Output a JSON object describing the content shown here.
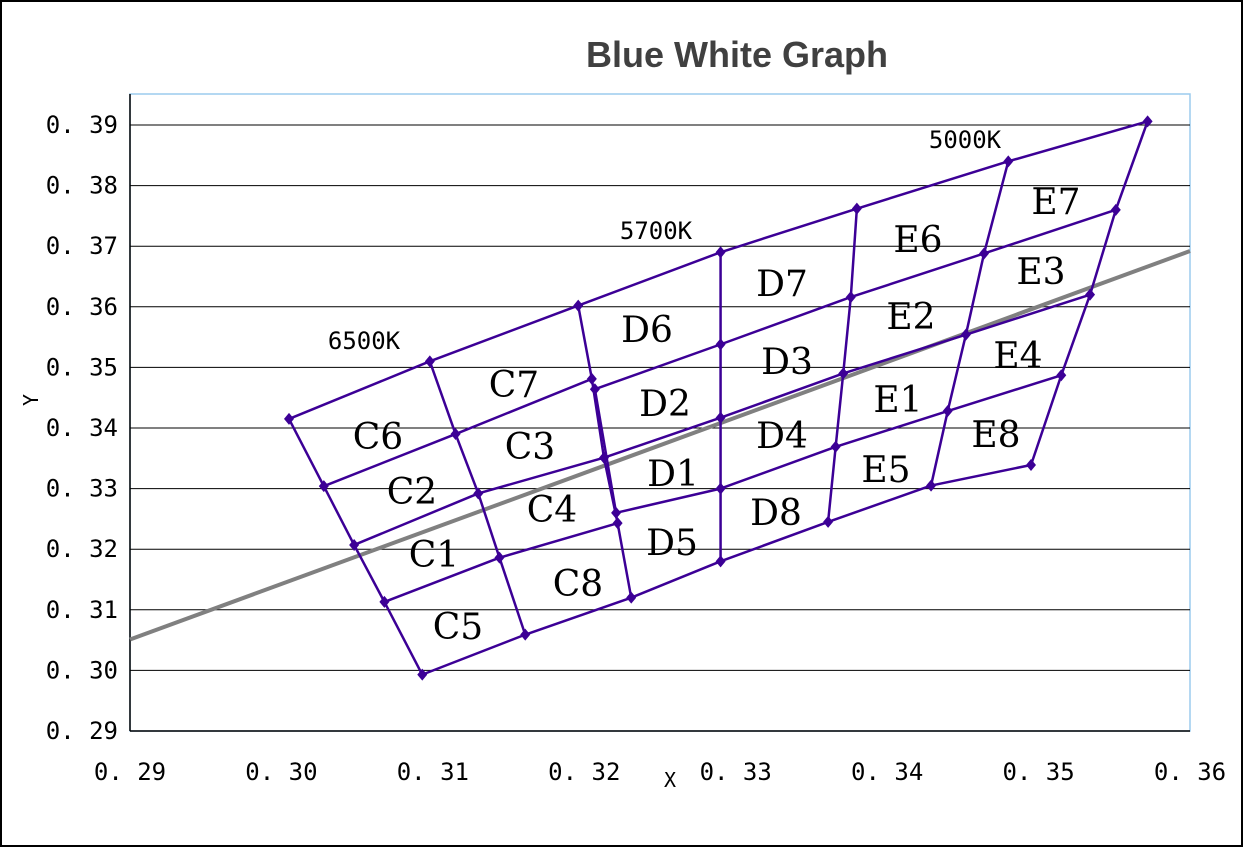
{
  "chart_data": {
    "type": "scatter",
    "title": "Blue White Graph",
    "xlabel": "X",
    "ylabel": "Y",
    "xlim": [
      0.29,
      0.36
    ],
    "ylim": [
      0.29,
      0.39
    ],
    "x_ticks": [
      "0. 29",
      "0. 30",
      "0. 31",
      "0. 32",
      "0. 33",
      "0. 34",
      "0. 35",
      "0. 36"
    ],
    "y_ticks": [
      "0. 29",
      "0. 30",
      "0. 31",
      "0. 32",
      "0. 33",
      "0. 34",
      "0. 35",
      "0. 36",
      "0. 37",
      "0. 38",
      "0. 39"
    ],
    "grid": "horizontal",
    "legend": "none",
    "colors": {
      "grid_line": "#3c0096",
      "reference_line": "#808080",
      "axis_line": "#000000",
      "plot_border": "#9ccbee"
    },
    "grid_points": {
      "c_left": [
        [
          0.3005,
          0.3415
        ],
        [
          0.3028,
          0.3304
        ],
        [
          0.3048,
          0.3207
        ],
        [
          0.3068,
          0.3113
        ],
        [
          0.3093,
          0.2993
        ]
      ],
      "c_mid": [
        [
          0.3098,
          0.351
        ],
        [
          0.3115,
          0.339
        ],
        [
          0.313,
          0.3292
        ],
        [
          0.3144,
          0.3186
        ],
        [
          0.3161,
          0.3059
        ]
      ],
      "c_right": [
        [
          0.3196,
          0.3602
        ],
        [
          0.3205,
          0.3481
        ],
        [
          0.3213,
          0.3351
        ],
        [
          0.3222,
          0.3243
        ],
        [
          0.3231,
          0.312
        ]
      ],
      "d_left": [
        [
          0.3207,
          0.3464
        ],
        [
          0.3221,
          0.326
        ]
      ],
      "d_mid": [
        [
          0.329,
          0.369
        ],
        [
          0.329,
          0.3538
        ],
        [
          0.329,
          0.3417
        ],
        [
          0.329,
          0.33
        ],
        [
          0.329,
          0.318
        ]
      ],
      "d_right": [
        [
          0.338,
          0.3762
        ],
        [
          0.3376,
          0.3616
        ],
        [
          0.3371,
          0.349
        ],
        [
          0.3366,
          0.3369
        ],
        [
          0.3361,
          0.3245
        ]
      ],
      "e_mid": [
        [
          0.348,
          0.384
        ],
        [
          0.3464,
          0.3688
        ],
        [
          0.3452,
          0.3554
        ],
        [
          0.344,
          0.3428
        ],
        [
          0.3429,
          0.3305
        ]
      ],
      "e_right": [
        [
          0.3572,
          0.3906
        ],
        [
          0.3551,
          0.376
        ],
        [
          0.3534,
          0.362
        ],
        [
          0.3515,
          0.3487
        ],
        [
          0.3495,
          0.3339
        ]
      ]
    },
    "reference_line": [
      [
        0.29,
        0.3051
      ],
      [
        0.36,
        0.3692
      ]
    ],
    "regions": [
      "C1",
      "C2",
      "C3",
      "C4",
      "C5",
      "C6",
      "C7",
      "C8",
      "D1",
      "D2",
      "D3",
      "D4",
      "D5",
      "D6",
      "D7",
      "D8",
      "E1",
      "E2",
      "E3",
      "E4",
      "E5",
      "E6",
      "E7",
      "E8"
    ],
    "cct_labels": [
      "6500K",
      "5700K",
      "5000K"
    ]
  }
}
